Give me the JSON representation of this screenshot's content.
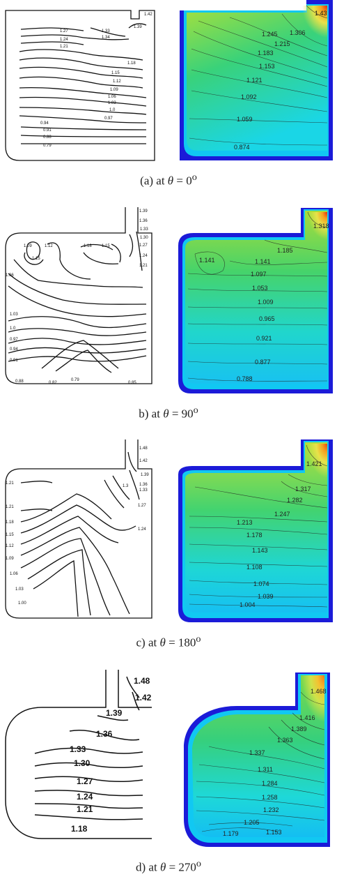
{
  "panels": [
    {
      "caption": {
        "prefix": "(a)  at",
        "theta": "θ",
        "rest": " = 0",
        "sup": "o"
      },
      "left_labels": [
        "1.42",
        "1.39",
        "1.33",
        "1.34",
        "1.27",
        "1.24",
        "1.21",
        "1.18",
        "1.15",
        "1.12",
        "1.09",
        "1.06",
        "1.03",
        "1.0",
        "0.97",
        "0.94",
        "0.91",
        "0.88",
        "0.79"
      ],
      "right_labels": [
        "1.43",
        "1.306",
        "1.245",
        "1.215",
        "1.183",
        "1.153",
        "1.121",
        "1.092",
        "1.059",
        "0.874"
      ]
    },
    {
      "caption": {
        "prefix": "b)  at",
        "theta": "θ",
        "rest": " = 90",
        "sup": "o"
      },
      "left_labels": [
        "1.39",
        "1.36",
        "1.33",
        "1.30",
        "1.27",
        "1.24",
        "1.21",
        "1.09",
        "1.12",
        "1.15",
        "1.18",
        "1.15",
        "1.06",
        "1.03",
        "1.0",
        "0.97",
        "0.94",
        "0.91",
        "0.88",
        "0.82",
        "0.79",
        "0.85"
      ],
      "right_labels": [
        "1.318",
        "1.185",
        "1.141",
        "1.141",
        "1.097",
        "1.053",
        "1.009",
        "0.965",
        "0.921",
        "0.877",
        "0.788"
      ]
    },
    {
      "caption": {
        "prefix": "c)  at",
        "theta": "θ",
        "rest": " = 180",
        "sup": "o"
      },
      "left_labels": [
        "1.48",
        "1.42",
        "1.39",
        "1.36",
        "1.33",
        "1.3",
        "1.27",
        "1.24",
        "1.21",
        "1.21",
        "1.18",
        "1.15",
        "1.12",
        "1.09",
        "1.06",
        "1.03",
        "1.00"
      ],
      "right_labels": [
        "1.421",
        "1.317",
        "1.282",
        "1.247",
        "1.213",
        "1.178",
        "1.143",
        "1.108",
        "1.074",
        "1.039",
        "1.004"
      ]
    },
    {
      "caption": {
        "prefix": "d)  at",
        "theta": "θ",
        "rest": " = 270",
        "sup": "o"
      },
      "left_labels": [
        "1.48",
        "1.42",
        "1.39",
        "1.36",
        "1.33",
        "1.30",
        "1.27",
        "1.24",
        "1.21",
        "1.18"
      ],
      "right_labels": [
        "1.468",
        "1.416",
        "1.389",
        "1.363",
        "1.337",
        "1.311",
        "1.284",
        "1.258",
        "1.232",
        "1.205",
        "1.179",
        "1.153"
      ]
    }
  ]
}
